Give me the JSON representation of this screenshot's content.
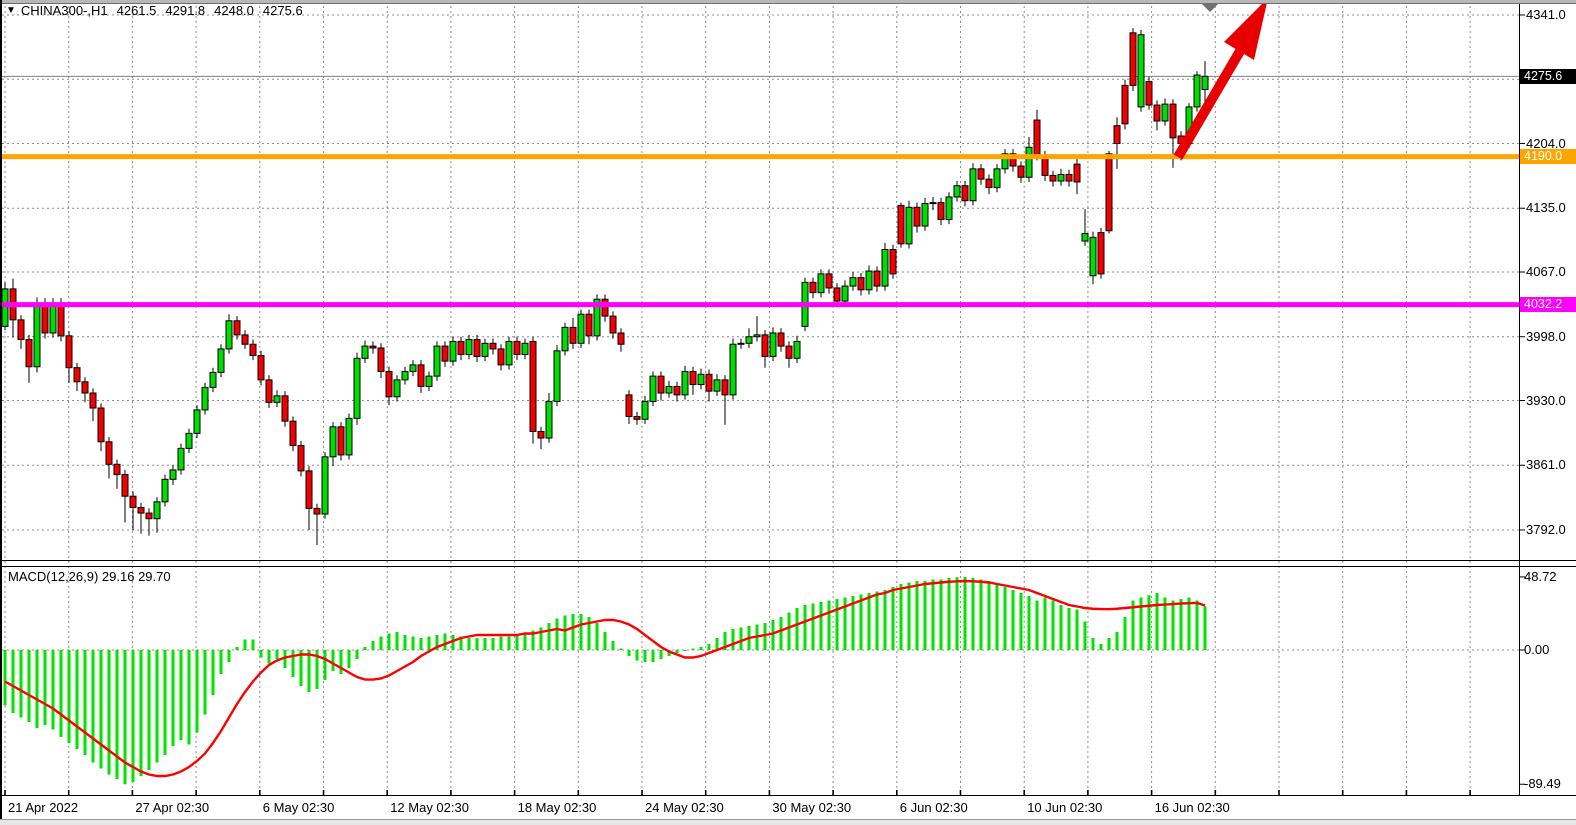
{
  "window": {
    "title": {
      "collapse_icon": "triangle-down",
      "symbol_period": "CHINA300-,H1",
      "open": "4261.5",
      "high": "4291.8",
      "low": "4248.0",
      "close": "4275.6"
    }
  },
  "price_axis": {
    "labels": [
      "4341.0",
      "4204.0",
      "4135.0",
      "4067.0",
      "3998.0",
      "3930.0",
      "3861.0",
      "3792.0"
    ],
    "badges": [
      {
        "name": "current-price",
        "text": "4275.6",
        "bg": "#000000",
        "value": 4275.6
      },
      {
        "name": "resistance-level",
        "text": "4190.0",
        "bg": "#FFA500",
        "value": 4190.0
      },
      {
        "name": "support-level",
        "text": "4032.2",
        "bg": "#FF00FF",
        "value": 4032.2
      }
    ]
  },
  "time_axis": {
    "labels": [
      "21 Apr 2022",
      "27 Apr 02:30",
      "6 May 02:30",
      "12 May 02:30",
      "18 May 02:30",
      "24 May 02:30",
      "30 May 02:30",
      "6 Jun 02:30",
      "10 Jun 02:30",
      "16 Jun 02:30"
    ]
  },
  "macd_panel": {
    "label": "MACD(12,26,9) 29.16 29.70",
    "axis_labels": [
      "48.72",
      "0.00",
      "-89.49"
    ]
  },
  "colors": {
    "bull": "#00DC00",
    "bear": "#F40000",
    "candle_border": "#000000",
    "macd_bar": "#00E400",
    "signal_line": "#FF0000",
    "grid": "#8c8c8c",
    "resistance_line": "#FFA500",
    "support_line": "#FF00FF",
    "current_price_line": "#808080",
    "arrow": "#E80000",
    "bar_marker": "#707070"
  },
  "annotations": {
    "trend_arrow": "up-right red arrow from 4190 line toward top",
    "bar_end_marker": "gray down triangle above last bars"
  },
  "chart_data": [
    {
      "type": "candlestick",
      "title": "CHINA300-,H1",
      "current_ohlc": {
        "open": 4261.5,
        "high": 4291.8,
        "low": 4248.0,
        "close": 4275.6
      },
      "ylabel": "price",
      "ylim": [
        3770,
        4355
      ],
      "grid": "dashed",
      "price_grid_values": [
        4341.0,
        4272.5,
        4204.0,
        4135.0,
        4067.0,
        3998.0,
        3930.0,
        3861.0,
        3792.0
      ],
      "price_axis_labels": [
        4341.0,
        4204.0,
        4135.0,
        4067.0,
        3998.0,
        3930.0,
        3861.0,
        3792.0
      ],
      "lines": [
        {
          "name": "current-price",
          "value": 4275.6
        },
        {
          "name": "resistance",
          "value": 4190.0
        },
        {
          "name": "support",
          "value": 4032.2
        }
      ],
      "x_start": 5,
      "x_step": 8,
      "ohlc": [
        [
          4009,
          4056,
          4005,
          4049
        ],
        [
          4049,
          4060,
          3997,
          4016
        ],
        [
          4016,
          4021,
          3985,
          3995
        ],
        [
          3995,
          4000,
          3949,
          3966
        ],
        [
          3966,
          4040,
          3960,
          4034
        ],
        [
          4034,
          4039,
          3996,
          4002
        ],
        [
          4002,
          4039,
          3997,
          4034
        ],
        [
          4034,
          4039,
          3993,
          3999
        ],
        [
          3999,
          4004,
          3949,
          3965
        ],
        [
          3965,
          3970,
          3940,
          3950
        ],
        [
          3950,
          3955,
          3928,
          3938
        ],
        [
          3938,
          3943,
          3908,
          3922
        ],
        [
          3922,
          3927,
          3876,
          3886
        ],
        [
          3886,
          3891,
          3847,
          3862
        ],
        [
          3862,
          3867,
          3836,
          3851
        ],
        [
          3851,
          3856,
          3800,
          3828
        ],
        [
          3828,
          3833,
          3792,
          3816
        ],
        [
          3816,
          3821,
          3788,
          3810
        ],
        [
          3810,
          3815,
          3786,
          3804
        ],
        [
          3804,
          3827,
          3789,
          3822
        ],
        [
          3822,
          3851,
          3817,
          3846
        ],
        [
          3846,
          3861,
          3840,
          3856
        ],
        [
          3856,
          3884,
          3851,
          3879
        ],
        [
          3879,
          3900,
          3874,
          3895
        ],
        [
          3895,
          3925,
          3890,
          3920
        ],
        [
          3920,
          3949,
          3915,
          3944
        ],
        [
          3944,
          3965,
          3939,
          3960
        ],
        [
          3960,
          3990,
          3955,
          3985
        ],
        [
          3985,
          4022,
          3980,
          4015
        ],
        [
          4015,
          4020,
          3995,
          4000
        ],
        [
          4000,
          4005,
          3985,
          3990
        ],
        [
          3990,
          3995,
          3973,
          3978
        ],
        [
          3978,
          3983,
          3946,
          3952
        ],
        [
          3952,
          3957,
          3922,
          3928
        ],
        [
          3928,
          3941,
          3923,
          3935
        ],
        [
          3935,
          3940,
          3902,
          3908
        ],
        [
          3908,
          3913,
          3876,
          3882
        ],
        [
          3882,
          3887,
          3849,
          3855
        ],
        [
          3855,
          3860,
          3792,
          3815
        ],
        [
          3815,
          3820,
          3776,
          3809
        ],
        [
          3809,
          3875,
          3804,
          3870
        ],
        [
          3870,
          3907,
          3860,
          3902
        ],
        [
          3902,
          3907,
          3866,
          3872
        ],
        [
          3872,
          3916,
          3867,
          3911
        ],
        [
          3911,
          3981,
          3904,
          3975
        ],
        [
          3975,
          3994,
          3970,
          3988
        ],
        [
          3988,
          3993,
          3980,
          3986
        ],
        [
          3986,
          3991,
          3954,
          3961
        ],
        [
          3961,
          3966,
          3925,
          3934
        ],
        [
          3934,
          3957,
          3929,
          3952
        ],
        [
          3952,
          3966,
          3947,
          3961
        ],
        [
          3961,
          3973,
          3956,
          3968
        ],
        [
          3968,
          3973,
          3938,
          3945
        ],
        [
          3945,
          3961,
          3940,
          3956
        ],
        [
          3956,
          3993,
          3951,
          3988
        ],
        [
          3988,
          3993,
          3966,
          3972
        ],
        [
          3972,
          3998,
          3967,
          3993
        ],
        [
          3993,
          3998,
          3973,
          3979
        ],
        [
          3979,
          4000,
          3974,
          3995
        ],
        [
          3995,
          4000,
          3971,
          3977
        ],
        [
          3977,
          3996,
          3972,
          3991
        ],
        [
          3991,
          3996,
          3979,
          3985
        ],
        [
          3985,
          3990,
          3962,
          3968
        ],
        [
          3968,
          3998,
          3963,
          3993
        ],
        [
          3993,
          3998,
          3973,
          3979
        ],
        [
          3979,
          3996,
          3974,
          3991
        ],
        [
          3993,
          3998,
          3884,
          3897
        ],
        [
          3897,
          3902,
          3878,
          3890
        ],
        [
          3890,
          3938,
          3885,
          3929
        ],
        [
          3929,
          3989,
          3924,
          3983
        ],
        [
          3983,
          4013,
          3978,
          4008
        ],
        [
          4008,
          4018,
          3985,
          3991
        ],
        [
          3991,
          4027,
          3986,
          4022
        ],
        [
          4022,
          4027,
          3990,
          3999
        ],
        [
          3999,
          4043,
          3994,
          4038
        ],
        [
          4038,
          4043,
          4014,
          4020
        ],
        [
          4020,
          4025,
          3996,
          4002
        ],
        [
          4002,
          4007,
          3982,
          3990
        ],
        [
          3936,
          3941,
          3905,
          3913
        ],
        [
          3913,
          3918,
          3904,
          3910
        ],
        [
          3910,
          3935,
          3905,
          3929
        ],
        [
          3929,
          3961,
          3924,
          3956
        ],
        [
          3956,
          3961,
          3930,
          3938
        ],
        [
          3938,
          3951,
          3933,
          3945
        ],
        [
          3945,
          3950,
          3929,
          3936
        ],
        [
          3936,
          3967,
          3931,
          3961
        ],
        [
          3961,
          3966,
          3936,
          3947
        ],
        [
          3947,
          3964,
          3942,
          3958
        ],
        [
          3958,
          3963,
          3929,
          3940
        ],
        [
          3940,
          3958,
          3935,
          3952
        ],
        [
          3952,
          3957,
          3904,
          3936
        ],
        [
          3936,
          3996,
          3931,
          3990
        ],
        [
          3990,
          3996,
          3985,
          3991
        ],
        [
          3991,
          4007,
          3986,
          3998
        ],
        [
          3998,
          4020,
          3993,
          4000
        ],
        [
          4000,
          4005,
          3965,
          3977
        ],
        [
          3977,
          4008,
          3972,
          4002
        ],
        [
          4002,
          4007,
          3982,
          3988
        ],
        [
          3988,
          3993,
          3965,
          3975
        ],
        [
          3975,
          3999,
          3970,
          3993
        ],
        [
          4009,
          4061,
          4004,
          4056
        ],
        [
          4056,
          4061,
          4039,
          4045
        ],
        [
          4045,
          4070,
          4040,
          4065
        ],
        [
          4065,
          4070,
          4044,
          4050
        ],
        [
          4050,
          4055,
          4031,
          4036
        ],
        [
          4036,
          4058,
          4031,
          4052
        ],
        [
          4052,
          4067,
          4047,
          4061
        ],
        [
          4061,
          4066,
          4042,
          4048
        ],
        [
          4048,
          4074,
          4043,
          4068
        ],
        [
          4068,
          4073,
          4046,
          4052
        ],
        [
          4052,
          4098,
          4047,
          4091
        ],
        [
          4091,
          4096,
          4060,
          4065
        ],
        [
          4138,
          4141,
          4093,
          4097
        ],
        [
          4097,
          4143,
          4092,
          4136
        ],
        [
          4136,
          4141,
          4109,
          4116
        ],
        [
          4116,
          4146,
          4111,
          4140
        ],
        [
          4140,
          4147,
          4133,
          4141
        ],
        [
          4141,
          4146,
          4117,
          4123
        ],
        [
          4123,
          4152,
          4118,
          4147
        ],
        [
          4147,
          4164,
          4142,
          4159
        ],
        [
          4159,
          4164,
          4137,
          4143
        ],
        [
          4143,
          4183,
          4138,
          4177
        ],
        [
          4177,
          4182,
          4160,
          4166
        ],
        [
          4166,
          4171,
          4150,
          4157
        ],
        [
          4157,
          4182,
          4152,
          4177
        ],
        [
          4177,
          4198,
          4172,
          4193
        ],
        [
          4193,
          4198,
          4174,
          4180
        ],
        [
          4180,
          4185,
          4162,
          4168
        ],
        [
          4168,
          4211,
          4163,
          4200
        ],
        [
          4229,
          4240,
          4186,
          4191
        ],
        [
          4191,
          4196,
          4164,
          4170
        ],
        [
          4170,
          4175,
          4158,
          4164
        ],
        [
          4164,
          4177,
          4159,
          4171
        ],
        [
          4171,
          4176,
          4158,
          4164
        ],
        [
          4182,
          4189,
          4150,
          4163
        ],
        [
          4100,
          4134,
          4095,
          4108
        ],
        [
          4063,
          4110,
          4054,
          4104
        ],
        [
          4109,
          4114,
          4060,
          4065
        ],
        [
          4193,
          4196,
          4108,
          4111
        ],
        [
          4223,
          4232,
          4177,
          4204
        ],
        [
          4266,
          4272,
          4219,
          4225
        ],
        [
          4322,
          4327,
          4260,
          4266
        ],
        [
          4243,
          4325,
          4238,
          4320
        ],
        [
          4270,
          4275,
          4240,
          4245
        ],
        [
          4245,
          4250,
          4218,
          4228
        ],
        [
          4228,
          4252,
          4223,
          4246
        ],
        [
          4246,
          4251,
          4178,
          4210
        ],
        [
          4212,
          4217,
          4186,
          4204
        ],
        [
          4204,
          4247,
          4199,
          4243
        ],
        [
          4243,
          4281,
          4238,
          4277
        ],
        [
          4261.5,
          4291.8,
          4248,
          4275.6
        ]
      ]
    },
    {
      "type": "bar",
      "title": "MACD(12,26,9)",
      "current_values": {
        "macd": 29.16,
        "signal": 29.7
      },
      "ylim": [
        -100,
        55
      ],
      "axis_values": [
        48.72,
        0.0,
        -89.49
      ],
      "histogram": [
        -37,
        -42,
        -45,
        -48,
        -52,
        -50,
        -53,
        -58,
        -62,
        -66,
        -70,
        -75,
        -79,
        -83,
        -86,
        -89.5,
        -88,
        -84,
        -80,
        -75,
        -70,
        -64,
        -60,
        -63,
        -55,
        -43,
        -30,
        -16,
        -8,
        2,
        7,
        7,
        -5,
        -9,
        -6,
        -12,
        -18,
        -24,
        -28,
        -26,
        -20,
        -14,
        -16,
        -12,
        -6,
        2,
        6,
        9,
        11,
        12,
        10,
        9,
        8,
        9,
        10,
        11,
        10,
        9,
        8,
        8,
        8,
        8,
        9,
        9,
        10,
        11,
        13,
        15,
        18,
        21,
        23,
        24,
        24,
        22,
        18,
        12,
        6,
        1,
        -4,
        -7,
        -8,
        -8,
        -6,
        -4,
        -2,
        0,
        1,
        2,
        4,
        8,
        12,
        14,
        15,
        16,
        17,
        18,
        20,
        22,
        25,
        28,
        30,
        31,
        32,
        33,
        34,
        35,
        36,
        37,
        38,
        39,
        40,
        42,
        44,
        45,
        46,
        46,
        47,
        47,
        48,
        48.5,
        48.7,
        48,
        47,
        46,
        44,
        42,
        40,
        38,
        36,
        33,
        35,
        33,
        30,
        28,
        27,
        19,
        8,
        4,
        8,
        12,
        22,
        33,
        35,
        36.5,
        38,
        35,
        33,
        34,
        35,
        33,
        29.16
      ],
      "signal": [
        -21,
        -24,
        -27,
        -30,
        -33,
        -36,
        -39,
        -43,
        -47,
        -51,
        -55,
        -59,
        -63,
        -67,
        -71,
        -75,
        -78,
        -81,
        -83,
        -84,
        -84,
        -83,
        -81,
        -78,
        -74,
        -69,
        -62,
        -54,
        -45,
        -36,
        -28,
        -21,
        -15,
        -10,
        -7,
        -5,
        -4,
        -3,
        -3,
        -4,
        -6,
        -9,
        -12,
        -15,
        -18,
        -19.7,
        -19.7,
        -19,
        -17,
        -14,
        -11,
        -8,
        -4,
        -1,
        2,
        4,
        6,
        8,
        9,
        10,
        10,
        10,
        10,
        10,
        10,
        11,
        11,
        12,
        13,
        14,
        13,
        15,
        17,
        18,
        19,
        20,
        20,
        19,
        17,
        14,
        10,
        6,
        2,
        -1,
        -3,
        -5,
        -5,
        -4,
        -2,
        0,
        2,
        4,
        6,
        8,
        9,
        10,
        11,
        13,
        15,
        17,
        19,
        21,
        23,
        25,
        27,
        29,
        31,
        33,
        35,
        37,
        38,
        40,
        41,
        42,
        43,
        44,
        44.5,
        45,
        45.5,
        45.8,
        46,
        45.8,
        45.5,
        45,
        44,
        43,
        42,
        41,
        40,
        38,
        36,
        34,
        32,
        30,
        29,
        28,
        27.5,
        27.3,
        27.2,
        27.5,
        28,
        28.5,
        29,
        29.5,
        30,
        30.3,
        30.6,
        31,
        31.2,
        31.4,
        29.7
      ]
    }
  ]
}
